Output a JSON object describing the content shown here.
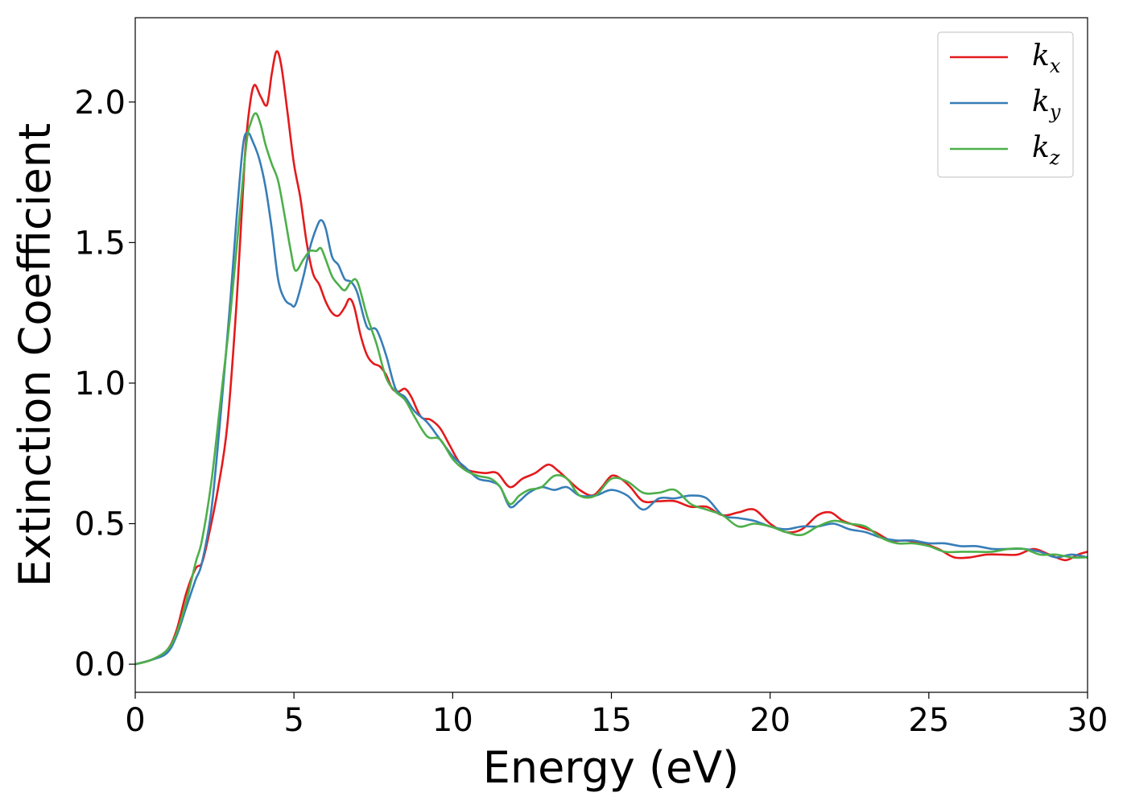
{
  "chart_data": {
    "type": "line",
    "title": "",
    "xlabel": "Energy (eV)",
    "ylabel": "Extinction Coefficient",
    "xlim": [
      0,
      30
    ],
    "ylim": [
      -0.1,
      2.3
    ],
    "xticks": [
      0,
      5,
      10,
      15,
      20,
      25,
      30
    ],
    "xtick_labels": [
      "0",
      "5",
      "10",
      "15",
      "20",
      "25",
      "30"
    ],
    "yticks": [
      0.0,
      0.5,
      1.0,
      1.5,
      2.0
    ],
    "ytick_labels": [
      "0.0",
      "0.5",
      "1.0",
      "1.5",
      "2.0"
    ],
    "grid": false,
    "legend_position": "top-right",
    "series": [
      {
        "name": "k",
        "subscript": "x",
        "color": "#e41a1c",
        "x": [
          0,
          0.5,
          1.0,
          1.3,
          1.6,
          1.9,
          2.1,
          2.3,
          2.6,
          2.9,
          3.2,
          3.45,
          3.6,
          3.75,
          3.95,
          4.15,
          4.3,
          4.45,
          4.6,
          4.8,
          5.0,
          5.2,
          5.4,
          5.6,
          5.8,
          6.0,
          6.2,
          6.4,
          6.6,
          6.75,
          6.9,
          7.1,
          7.3,
          7.5,
          7.7,
          7.9,
          8.1,
          8.3,
          8.5,
          8.7,
          9.0,
          9.3,
          9.6,
          9.9,
          10.2,
          10.5,
          11.0,
          11.4,
          11.8,
          12.2,
          12.6,
          13.0,
          13.3,
          13.6,
          14.0,
          14.4,
          14.7,
          15.0,
          15.3,
          15.6,
          16.0,
          16.5,
          17.0,
          17.5,
          18.0,
          18.5,
          19.0,
          19.5,
          20.0,
          20.5,
          21.0,
          21.5,
          21.9,
          22.3,
          22.8,
          23.3,
          23.8,
          24.3,
          24.8,
          25.3,
          25.8,
          26.3,
          26.8,
          27.3,
          27.8,
          28.3,
          28.8,
          29.3,
          29.7,
          30.0
        ],
        "y": [
          0.0,
          0.015,
          0.05,
          0.12,
          0.25,
          0.34,
          0.36,
          0.45,
          0.62,
          0.85,
          1.3,
          1.8,
          1.98,
          2.06,
          2.02,
          1.99,
          2.1,
          2.18,
          2.13,
          1.96,
          1.78,
          1.66,
          1.5,
          1.39,
          1.35,
          1.29,
          1.25,
          1.24,
          1.27,
          1.3,
          1.27,
          1.17,
          1.1,
          1.07,
          1.06,
          1.03,
          0.98,
          0.97,
          0.98,
          0.95,
          0.88,
          0.87,
          0.84,
          0.78,
          0.72,
          0.69,
          0.68,
          0.68,
          0.63,
          0.66,
          0.68,
          0.71,
          0.69,
          0.66,
          0.62,
          0.6,
          0.63,
          0.67,
          0.66,
          0.63,
          0.58,
          0.58,
          0.58,
          0.56,
          0.56,
          0.53,
          0.54,
          0.55,
          0.5,
          0.47,
          0.48,
          0.53,
          0.54,
          0.51,
          0.49,
          0.47,
          0.44,
          0.44,
          0.43,
          0.41,
          0.38,
          0.38,
          0.39,
          0.39,
          0.39,
          0.41,
          0.39,
          0.37,
          0.39,
          0.4
        ]
      },
      {
        "name": "k",
        "subscript": "y",
        "color": "#377eb8",
        "x": [
          0,
          0.5,
          1.0,
          1.3,
          1.6,
          1.9,
          2.1,
          2.4,
          2.7,
          3.0,
          3.2,
          3.4,
          3.55,
          3.7,
          3.9,
          4.1,
          4.3,
          4.5,
          4.7,
          4.9,
          5.05,
          5.3,
          5.5,
          5.7,
          5.85,
          6.0,
          6.2,
          6.4,
          6.6,
          6.8,
          7.0,
          7.3,
          7.6,
          7.9,
          8.2,
          8.5,
          8.8,
          9.2,
          9.6,
          10.0,
          10.4,
          10.8,
          11.2,
          11.5,
          11.8,
          12.1,
          12.4,
          12.8,
          13.2,
          13.6,
          14.0,
          14.5,
          15.0,
          15.5,
          16.0,
          16.5,
          17.0,
          17.5,
          18.0,
          18.5,
          19.0,
          19.5,
          20.0,
          20.5,
          21.0,
          21.5,
          22.0,
          22.5,
          23.0,
          23.5,
          24.0,
          24.5,
          25.0,
          25.5,
          26.0,
          26.5,
          27.0,
          27.5,
          28.0,
          28.5,
          29.0,
          29.5,
          30.0
        ],
        "y": [
          0.0,
          0.015,
          0.04,
          0.1,
          0.2,
          0.3,
          0.36,
          0.55,
          0.9,
          1.3,
          1.6,
          1.85,
          1.89,
          1.86,
          1.8,
          1.7,
          1.55,
          1.37,
          1.3,
          1.28,
          1.28,
          1.38,
          1.48,
          1.55,
          1.58,
          1.55,
          1.45,
          1.42,
          1.37,
          1.36,
          1.32,
          1.2,
          1.19,
          1.1,
          0.98,
          0.95,
          0.9,
          0.86,
          0.8,
          0.74,
          0.7,
          0.66,
          0.65,
          0.63,
          0.56,
          0.58,
          0.61,
          0.63,
          0.62,
          0.63,
          0.6,
          0.6,
          0.62,
          0.6,
          0.55,
          0.59,
          0.59,
          0.6,
          0.59,
          0.53,
          0.52,
          0.51,
          0.49,
          0.48,
          0.49,
          0.49,
          0.5,
          0.48,
          0.47,
          0.45,
          0.44,
          0.44,
          0.43,
          0.43,
          0.42,
          0.42,
          0.41,
          0.41,
          0.41,
          0.4,
          0.38,
          0.39,
          0.38
        ]
      },
      {
        "name": "k",
        "subscript": "z",
        "color": "#4daf4a",
        "x": [
          0,
          0.5,
          1.0,
          1.3,
          1.6,
          1.9,
          2.1,
          2.4,
          2.7,
          3.0,
          3.25,
          3.5,
          3.65,
          3.8,
          3.95,
          4.1,
          4.3,
          4.5,
          4.7,
          4.9,
          5.05,
          5.3,
          5.5,
          5.7,
          5.85,
          6.0,
          6.2,
          6.4,
          6.6,
          6.8,
          7.0,
          7.3,
          7.6,
          7.9,
          8.2,
          8.5,
          8.8,
          9.2,
          9.6,
          10.0,
          10.4,
          10.8,
          11.2,
          11.5,
          11.8,
          12.1,
          12.4,
          12.8,
          13.2,
          13.6,
          14.0,
          14.5,
          15.0,
          15.5,
          16.0,
          16.5,
          17.0,
          17.5,
          18.0,
          18.5,
          19.0,
          19.5,
          20.0,
          20.5,
          21.0,
          21.5,
          22.0,
          22.5,
          23.0,
          23.5,
          24.0,
          24.5,
          25.0,
          25.5,
          26.0,
          26.5,
          27.0,
          27.5,
          28.0,
          28.5,
          29.0,
          29.5,
          30.0
        ],
        "y": [
          0.0,
          0.015,
          0.05,
          0.11,
          0.22,
          0.36,
          0.44,
          0.65,
          0.95,
          1.25,
          1.55,
          1.85,
          1.93,
          1.96,
          1.92,
          1.85,
          1.78,
          1.72,
          1.6,
          1.47,
          1.4,
          1.44,
          1.47,
          1.47,
          1.48,
          1.44,
          1.38,
          1.35,
          1.33,
          1.36,
          1.36,
          1.24,
          1.14,
          1.02,
          0.97,
          0.94,
          0.88,
          0.81,
          0.8,
          0.73,
          0.69,
          0.67,
          0.66,
          0.63,
          0.57,
          0.6,
          0.62,
          0.63,
          0.67,
          0.66,
          0.6,
          0.6,
          0.66,
          0.65,
          0.61,
          0.61,
          0.62,
          0.57,
          0.55,
          0.53,
          0.49,
          0.5,
          0.49,
          0.47,
          0.46,
          0.49,
          0.51,
          0.5,
          0.49,
          0.45,
          0.43,
          0.43,
          0.42,
          0.4,
          0.4,
          0.4,
          0.4,
          0.41,
          0.41,
          0.39,
          0.39,
          0.38,
          0.38
        ]
      }
    ]
  }
}
